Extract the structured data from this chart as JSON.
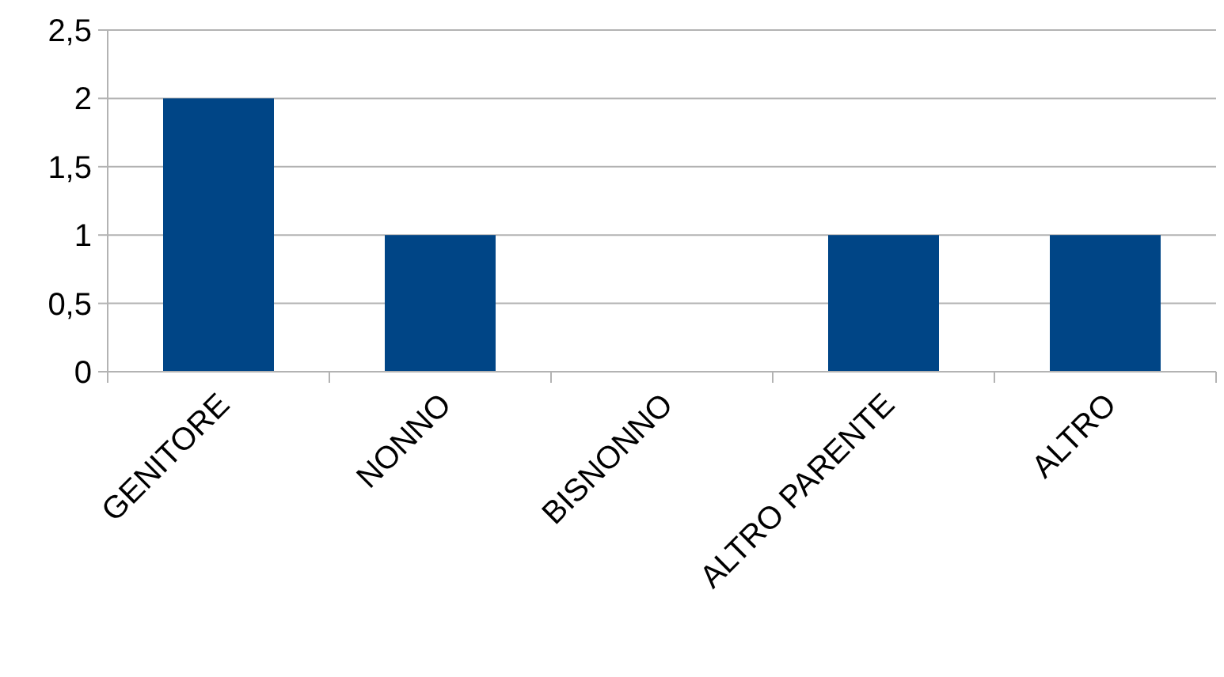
{
  "chart_data": {
    "type": "bar",
    "categories": [
      "GENITORE",
      "NONNO",
      "BISNONNO",
      "ALTRO PARENTE",
      "ALTRO"
    ],
    "values": [
      2,
      1,
      0,
      1,
      1
    ],
    "color": "#004586",
    "ylim": [
      0,
      2.5
    ],
    "yticks": [
      0,
      {
        "value": 0.5,
        "label": "0,5"
      },
      1,
      {
        "value": 1.5,
        "label": "1,5"
      },
      2,
      {
        "value": 2.5,
        "label": "2,5"
      }
    ],
    "grid": "y"
  }
}
